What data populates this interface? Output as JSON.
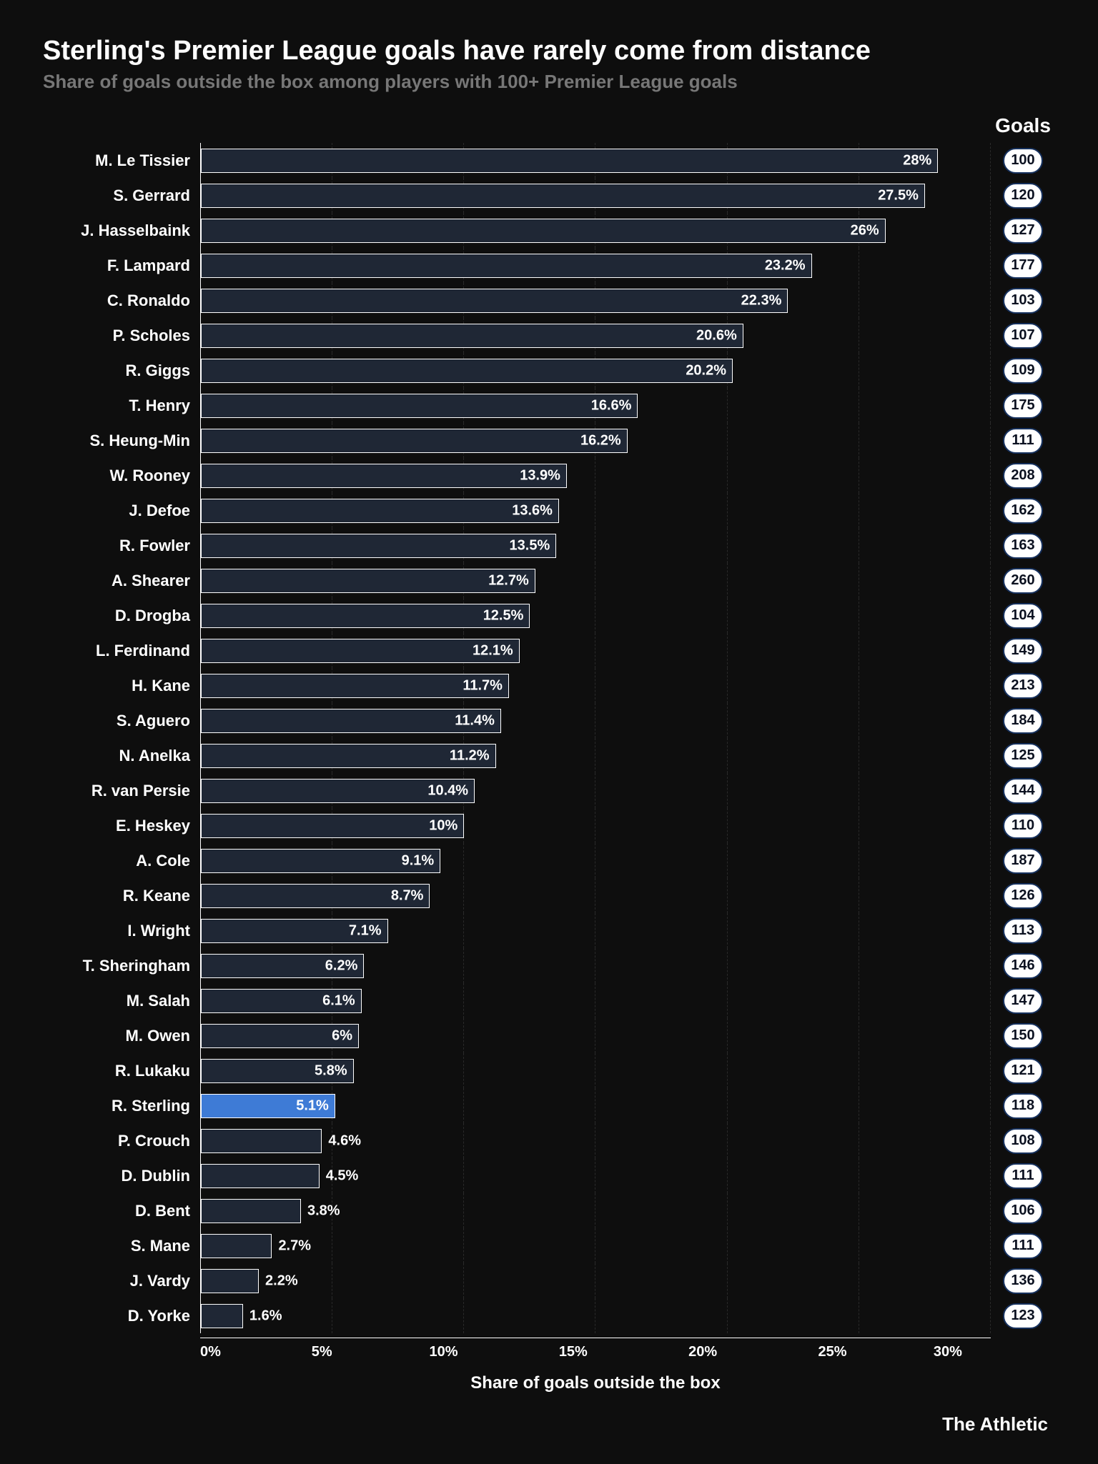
{
  "title": "Sterling's Premier League goals have rarely come from distance",
  "subtitle": "Share of goals outside the box among players with 100+ Premier League goals",
  "goals_header": "Goals",
  "xlabel": "Share of goals outside the box",
  "credit": "The Athletic",
  "chart": {
    "type": "bar",
    "xlim_max": 30,
    "ticks": [
      "0%",
      "5%",
      "10%",
      "15%",
      "20%",
      "25%",
      "30%"
    ],
    "bar_fill": "#1f2735",
    "bar_border": "#ffffff",
    "highlight_fill": "#3e7bd6",
    "background": "#0e0e0e",
    "grid_color": "#2a2a2a",
    "label_inside_threshold": 5,
    "title_fontsize": 38,
    "subtitle_fontsize": 26,
    "tick_fontsize": 20,
    "player_fontsize": 22,
    "badge_bg": "#ffffff",
    "badge_fg": "#0b1120",
    "badge_border": "#16315e"
  },
  "players": [
    {
      "name": "M. Le Tissier",
      "pct": 28.0,
      "pct_label": "28%",
      "goals": 100,
      "highlight": false
    },
    {
      "name": "S. Gerrard",
      "pct": 27.5,
      "pct_label": "27.5%",
      "goals": 120,
      "highlight": false
    },
    {
      "name": "J. Hasselbaink",
      "pct": 26.0,
      "pct_label": "26%",
      "goals": 127,
      "highlight": false
    },
    {
      "name": "F. Lampard",
      "pct": 23.2,
      "pct_label": "23.2%",
      "goals": 177,
      "highlight": false
    },
    {
      "name": "C. Ronaldo",
      "pct": 22.3,
      "pct_label": "22.3%",
      "goals": 103,
      "highlight": false
    },
    {
      "name": "P. Scholes",
      "pct": 20.6,
      "pct_label": "20.6%",
      "goals": 107,
      "highlight": false
    },
    {
      "name": "R. Giggs",
      "pct": 20.2,
      "pct_label": "20.2%",
      "goals": 109,
      "highlight": false
    },
    {
      "name": "T. Henry",
      "pct": 16.6,
      "pct_label": "16.6%",
      "goals": 175,
      "highlight": false
    },
    {
      "name": "S. Heung-Min",
      "pct": 16.2,
      "pct_label": "16.2%",
      "goals": 111,
      "highlight": false
    },
    {
      "name": "W. Rooney",
      "pct": 13.9,
      "pct_label": "13.9%",
      "goals": 208,
      "highlight": false
    },
    {
      "name": "J. Defoe",
      "pct": 13.6,
      "pct_label": "13.6%",
      "goals": 162,
      "highlight": false
    },
    {
      "name": "R. Fowler",
      "pct": 13.5,
      "pct_label": "13.5%",
      "goals": 163,
      "highlight": false
    },
    {
      "name": "A. Shearer",
      "pct": 12.7,
      "pct_label": "12.7%",
      "goals": 260,
      "highlight": false
    },
    {
      "name": "D. Drogba",
      "pct": 12.5,
      "pct_label": "12.5%",
      "goals": 104,
      "highlight": false
    },
    {
      "name": "L. Ferdinand",
      "pct": 12.1,
      "pct_label": "12.1%",
      "goals": 149,
      "highlight": false
    },
    {
      "name": "H. Kane",
      "pct": 11.7,
      "pct_label": "11.7%",
      "goals": 213,
      "highlight": false
    },
    {
      "name": "S. Aguero",
      "pct": 11.4,
      "pct_label": "11.4%",
      "goals": 184,
      "highlight": false
    },
    {
      "name": "N. Anelka",
      "pct": 11.2,
      "pct_label": "11.2%",
      "goals": 125,
      "highlight": false
    },
    {
      "name": "R. van Persie",
      "pct": 10.4,
      "pct_label": "10.4%",
      "goals": 144,
      "highlight": false
    },
    {
      "name": "E. Heskey",
      "pct": 10.0,
      "pct_label": "10%",
      "goals": 110,
      "highlight": false
    },
    {
      "name": "A. Cole",
      "pct": 9.1,
      "pct_label": "9.1%",
      "goals": 187,
      "highlight": false
    },
    {
      "name": "R. Keane",
      "pct": 8.7,
      "pct_label": "8.7%",
      "goals": 126,
      "highlight": false
    },
    {
      "name": "I. Wright",
      "pct": 7.1,
      "pct_label": "7.1%",
      "goals": 113,
      "highlight": false
    },
    {
      "name": "T. Sheringham",
      "pct": 6.2,
      "pct_label": "6.2%",
      "goals": 146,
      "highlight": false
    },
    {
      "name": "M. Salah",
      "pct": 6.1,
      "pct_label": "6.1%",
      "goals": 147,
      "highlight": false
    },
    {
      "name": "M. Owen",
      "pct": 6.0,
      "pct_label": "6%",
      "goals": 150,
      "highlight": false
    },
    {
      "name": "R. Lukaku",
      "pct": 5.8,
      "pct_label": "5.8%",
      "goals": 121,
      "highlight": false
    },
    {
      "name": "R. Sterling",
      "pct": 5.1,
      "pct_label": "5.1%",
      "goals": 118,
      "highlight": true
    },
    {
      "name": "P. Crouch",
      "pct": 4.6,
      "pct_label": "4.6%",
      "goals": 108,
      "highlight": false
    },
    {
      "name": "D. Dublin",
      "pct": 4.5,
      "pct_label": "4.5%",
      "goals": 111,
      "highlight": false
    },
    {
      "name": "D. Bent",
      "pct": 3.8,
      "pct_label": "3.8%",
      "goals": 106,
      "highlight": false
    },
    {
      "name": "S. Mane",
      "pct": 2.7,
      "pct_label": "2.7%",
      "goals": 111,
      "highlight": false
    },
    {
      "name": "J. Vardy",
      "pct": 2.2,
      "pct_label": "2.2%",
      "goals": 136,
      "highlight": false
    },
    {
      "name": "D. Yorke",
      "pct": 1.6,
      "pct_label": "1.6%",
      "goals": 123,
      "highlight": false
    }
  ]
}
